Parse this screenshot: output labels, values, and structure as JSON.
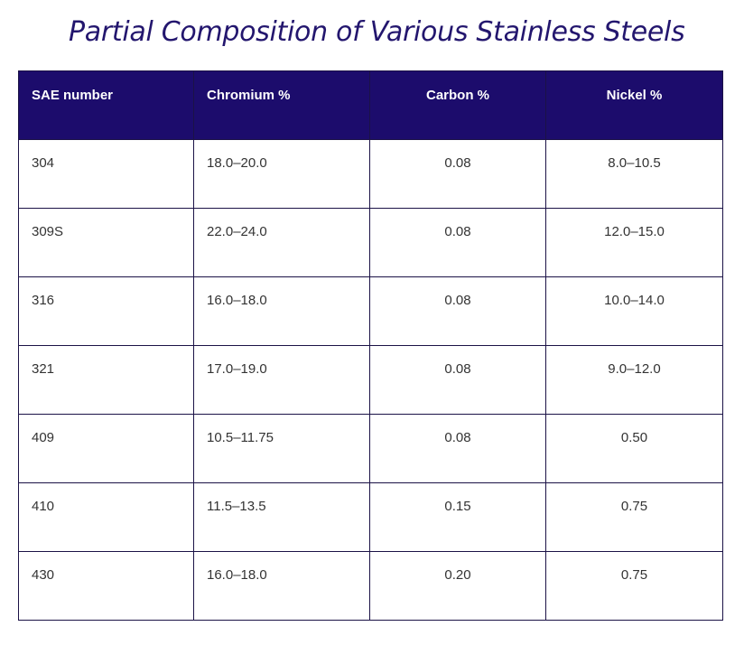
{
  "title": "Partial Composition of Various Stainless Steels",
  "table": {
    "headers": [
      "SAE number",
      "Chromium %",
      "Carbon %",
      "Nickel %"
    ],
    "rows": [
      [
        "304",
        "18.0–20.0",
        "0.08",
        "8.0–10.5"
      ],
      [
        "309S",
        "22.0–24.0",
        "0.08",
        "12.0–15.0"
      ],
      [
        "316",
        "16.0–18.0",
        "0.08",
        "10.0–14.0"
      ],
      [
        "321",
        "17.0–19.0",
        "0.08",
        "9.0–12.0"
      ],
      [
        "409",
        "10.5–11.75",
        "0.08",
        "0.50"
      ],
      [
        "410",
        "11.5–13.5",
        "0.15",
        "0.75"
      ],
      [
        "430",
        "16.0–18.0",
        "0.20",
        "0.75"
      ]
    ]
  },
  "colors": {
    "header_bg": "#1c0c6c",
    "title_text": "#23166e",
    "border": "#1b1246"
  }
}
